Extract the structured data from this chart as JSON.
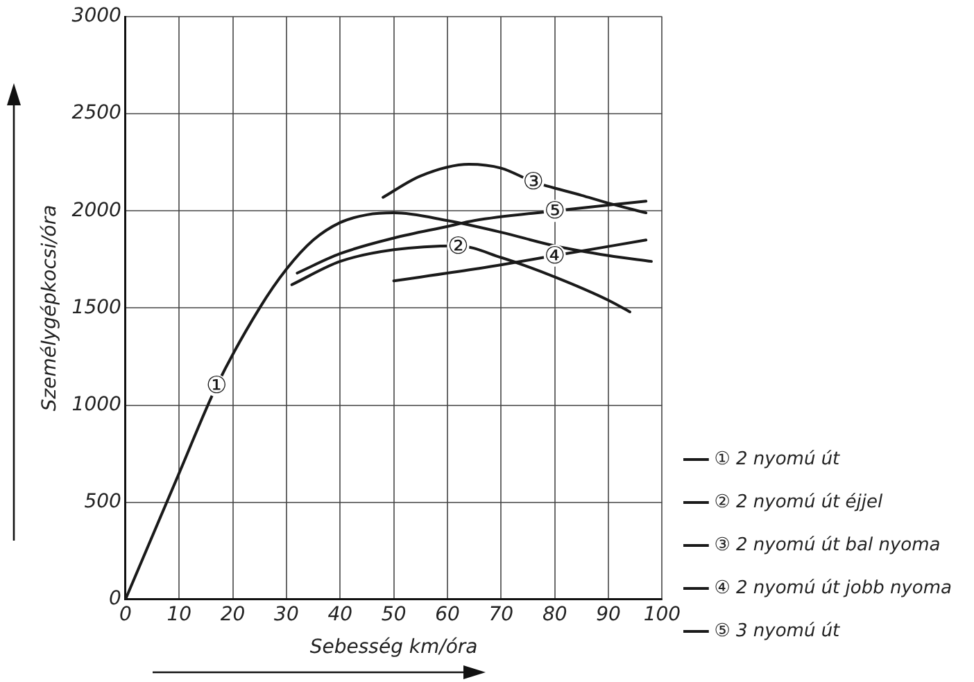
{
  "chart_data": {
    "type": "line",
    "xlabel": "Sebesség km/óra",
    "ylabel": "Személygépkocsi/óra",
    "xlim": [
      0,
      100
    ],
    "xticks": [
      0,
      10,
      20,
      30,
      40,
      50,
      60,
      70,
      80,
      90,
      100
    ],
    "ylim": [
      0,
      3000
    ],
    "yticks": [
      0,
      500,
      1000,
      1500,
      2000,
      2500,
      3000
    ],
    "grid": true,
    "legend": "right",
    "marker": "none",
    "line_style": "solid",
    "series": [
      {
        "name": "① 2 nyomú út",
        "color": "#1a1a1a",
        "x": [
          0,
          10,
          17,
          25,
          30,
          35,
          40,
          45,
          50,
          60,
          70,
          80,
          90,
          98
        ],
        "values": [
          0,
          650,
          1100,
          1500,
          1700,
          1850,
          1940,
          1980,
          1990,
          1950,
          1890,
          1820,
          1770,
          1740
        ]
      },
      {
        "name": "② 2 nyomú út éjjel",
        "color": "#1a1a1a",
        "x": [
          31,
          40,
          50,
          62,
          70,
          80,
          90,
          94
        ],
        "values": [
          1620,
          1740,
          1800,
          1820,
          1760,
          1660,
          1540,
          1480
        ]
      },
      {
        "name": "③ 2 nyomú út bal nyoma",
        "color": "#1a1a1a",
        "x": [
          48,
          55,
          64,
          70,
          76,
          85,
          90,
          97
        ],
        "values": [
          2070,
          2180,
          2240,
          2220,
          2150,
          2080,
          2040,
          1990
        ]
      },
      {
        "name": "④ 2 nyomú út jobb nyoma",
        "color": "#1a1a1a",
        "x": [
          50,
          65,
          80,
          97
        ],
        "values": [
          1640,
          1700,
          1770,
          1850
        ]
      },
      {
        "name": "⑤ 3 nyomú út",
        "color": "#1a1a1a",
        "x": [
          32,
          40,
          50,
          60,
          65,
          80,
          97
        ],
        "values": [
          1680,
          1780,
          1860,
          1920,
          1950,
          2000,
          2050
        ]
      }
    ],
    "annotations": [
      {
        "text": "①",
        "x": 17,
        "y": 1100
      },
      {
        "text": "②",
        "x": 62,
        "y": 1820
      },
      {
        "text": "③",
        "x": 76,
        "y": 2150
      },
      {
        "text": "④",
        "x": 80,
        "y": 1770
      },
      {
        "text": "⑤",
        "x": 80,
        "y": 2000
      }
    ]
  }
}
